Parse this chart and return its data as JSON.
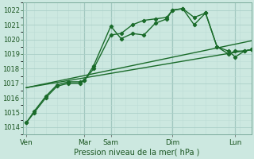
{
  "background_color": "#cce8e0",
  "grid_color_major": "#aacfc8",
  "grid_color_minor": "#bdddd6",
  "line_color": "#1a6b2a",
  "xlabel": "Pression niveau de la mer( hPa )",
  "ylim": [
    1013.5,
    1022.5
  ],
  "yticks": [
    1014,
    1015,
    1016,
    1017,
    1018,
    1019,
    1020,
    1021,
    1022
  ],
  "xlim": [
    0,
    10
  ],
  "day_labels": [
    "Ven",
    "Mar",
    "Sam",
    "Dim",
    "Lun"
  ],
  "day_positions": [
    0.15,
    2.7,
    3.85,
    6.55,
    9.3
  ],
  "vlines": [
    0.15,
    2.7,
    3.85,
    6.55,
    9.3
  ],
  "series": [
    {
      "x": [
        0.15,
        10.0
      ],
      "y": [
        1016.7,
        1019.3
      ],
      "marker": false,
      "linewidth": 1.0,
      "linestyle": "-"
    },
    {
      "x": [
        0.15,
        10.0
      ],
      "y": [
        1016.7,
        1019.9
      ],
      "marker": false,
      "linewidth": 1.0,
      "linestyle": "-"
    },
    {
      "x": [
        0.15,
        0.5,
        1.0,
        1.5,
        2.0,
        2.5,
        2.7,
        3.1,
        3.85,
        4.3,
        4.8,
        5.3,
        5.8,
        6.3,
        6.55,
        7.0,
        7.5,
        8.0,
        8.5,
        9.0,
        9.3,
        9.7,
        10.0
      ],
      "y": [
        1014.3,
        1015.0,
        1016.0,
        1016.8,
        1017.0,
        1017.0,
        1017.2,
        1018.0,
        1020.3,
        1020.4,
        1021.0,
        1021.3,
        1021.4,
        1021.5,
        1022.0,
        1022.1,
        1021.0,
        1021.8,
        1019.5,
        1019.2,
        1018.8,
        1019.2,
        1019.3
      ],
      "marker": true,
      "linewidth": 1.0,
      "linestyle": "-"
    },
    {
      "x": [
        0.15,
        0.5,
        1.0,
        1.5,
        2.0,
        2.5,
        2.7,
        3.1,
        3.85,
        4.3,
        4.8,
        5.3,
        5.8,
        6.3,
        6.55,
        7.0,
        7.5,
        8.0,
        8.5,
        9.0,
        9.3,
        9.7,
        10.0
      ],
      "y": [
        1014.3,
        1015.1,
        1016.1,
        1016.9,
        1017.1,
        1017.1,
        1017.2,
        1018.2,
        1020.9,
        1020.05,
        1020.4,
        1020.3,
        1021.1,
        1021.4,
        1022.0,
        1022.1,
        1021.5,
        1021.8,
        1019.5,
        1019.0,
        1019.2,
        1019.2,
        1019.3
      ],
      "marker": true,
      "linewidth": 1.0,
      "linestyle": "-"
    }
  ]
}
